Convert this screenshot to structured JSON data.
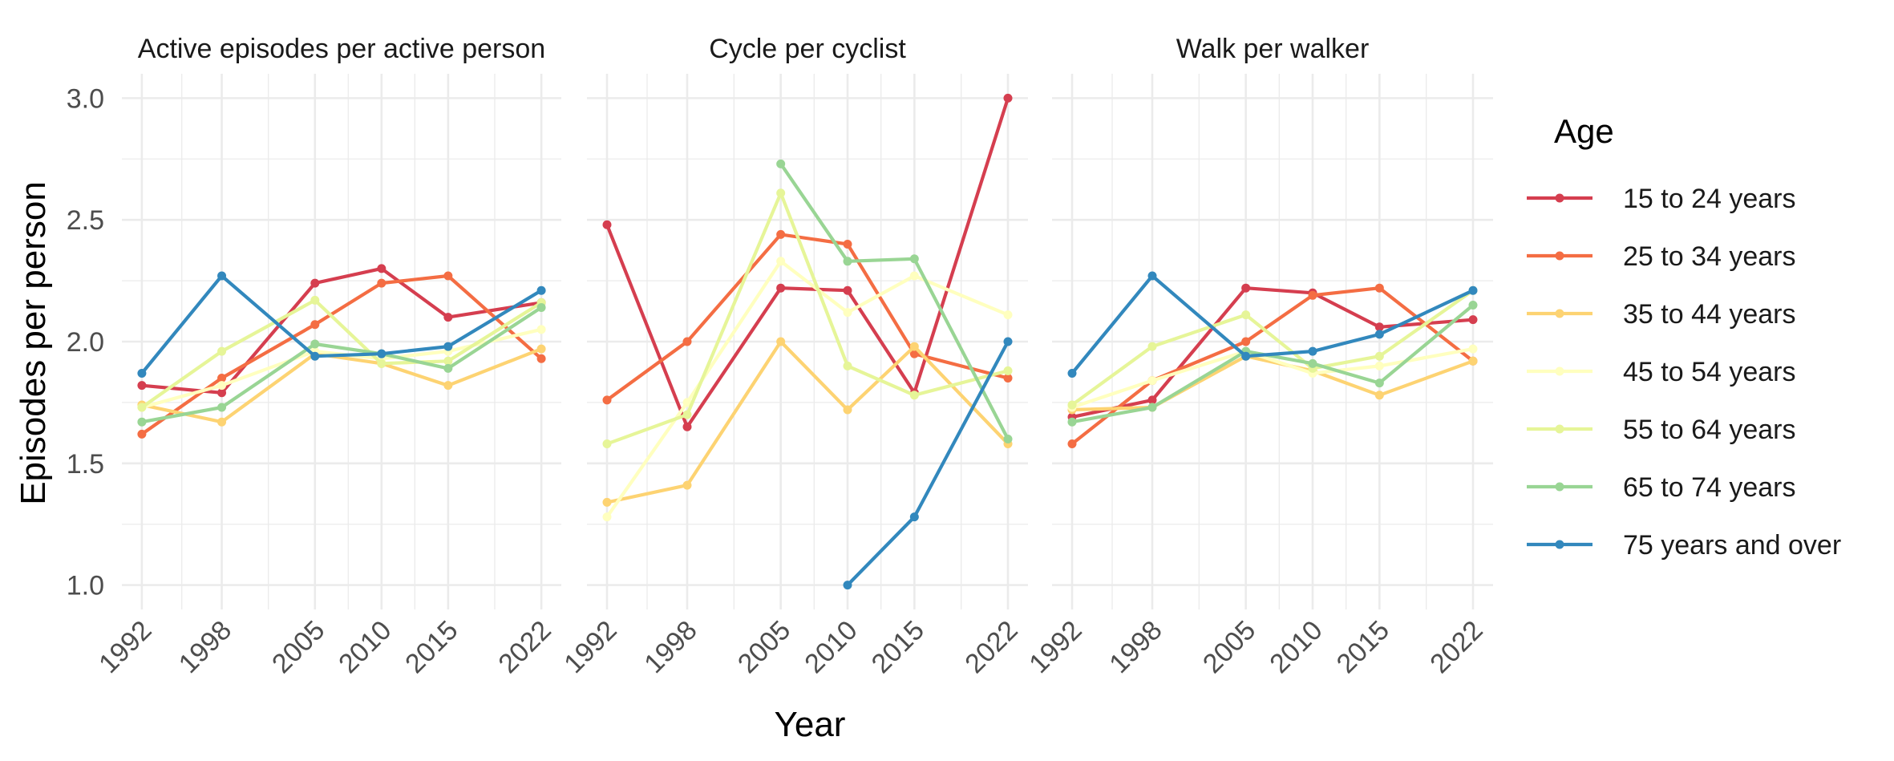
{
  "chart_data": {
    "type": "line",
    "xlabel": "Year",
    "ylabel": "Episodes per person",
    "ylim": [
      0.9,
      3.1
    ],
    "yticks": [
      "1.0",
      "1.5",
      "2.0",
      "2.5",
      "3.0"
    ],
    "x": [
      1992,
      1998,
      2005,
      2010,
      2015,
      2022
    ],
    "xtick_labels": [
      "1992",
      "1998",
      "2005",
      "2010",
      "2015",
      "2022"
    ],
    "grid": true,
    "legend": {
      "title": "Age",
      "placement": "right",
      "entries": [
        {
          "name": "15 to 24 years",
          "color": "#d53e4f"
        },
        {
          "name": "25 to 34 years",
          "color": "#f46d43"
        },
        {
          "name": "35 to 44 years",
          "color": "#fdd372"
        },
        {
          "name": "45 to 54 years",
          "color": "#ffffbf"
        },
        {
          "name": "55 to 64 years",
          "color": "#e6f598"
        },
        {
          "name": "65 to 74 years",
          "color": "#99d594"
        },
        {
          "name": "75 years and over",
          "color": "#3288bd"
        }
      ]
    },
    "panels": [
      {
        "title": "Active episodes per active person",
        "series": [
          {
            "name": "15 to 24 years",
            "values": [
              1.82,
              1.79,
              2.24,
              2.3,
              2.1,
              2.16
            ]
          },
          {
            "name": "25 to 34 years",
            "values": [
              1.62,
              1.85,
              2.07,
              2.24,
              2.27,
              1.93
            ]
          },
          {
            "name": "35 to 44 years",
            "values": [
              1.74,
              1.67,
              1.95,
              1.91,
              1.82,
              1.97
            ]
          },
          {
            "name": "45 to 54 years",
            "values": [
              1.73,
              1.82,
              1.96,
              1.93,
              1.96,
              2.05
            ]
          },
          {
            "name": "55 to 64 years",
            "values": [
              1.73,
              1.96,
              2.17,
              1.91,
              1.92,
              2.16
            ]
          },
          {
            "name": "65 to 74 years",
            "values": [
              1.67,
              1.73,
              1.99,
              1.95,
              1.89,
              2.14
            ]
          },
          {
            "name": "75 years and over",
            "values": [
              1.87,
              2.27,
              1.94,
              1.95,
              1.98,
              2.21
            ]
          }
        ]
      },
      {
        "title": "Cycle per cyclist",
        "series": [
          {
            "name": "15 to 24 years",
            "values": [
              2.48,
              1.65,
              2.22,
              2.21,
              1.79,
              3.0
            ]
          },
          {
            "name": "25 to 34 years",
            "values": [
              1.76,
              2.0,
              2.44,
              2.4,
              1.95,
              1.85
            ]
          },
          {
            "name": "35 to 44 years",
            "values": [
              1.34,
              1.41,
              2.0,
              1.72,
              1.98,
              1.58
            ]
          },
          {
            "name": "45 to 54 years",
            "values": [
              1.28,
              1.75,
              2.33,
              2.12,
              2.27,
              2.11
            ]
          },
          {
            "name": "55 to 64 years",
            "values": [
              1.58,
              1.7,
              2.61,
              1.9,
              1.78,
              1.88
            ]
          },
          {
            "name": "65 to 74 years",
            "values": [
              null,
              null,
              2.73,
              2.33,
              2.34,
              1.6
            ]
          },
          {
            "name": "75 years and over",
            "values": [
              null,
              null,
              null,
              1.0,
              1.28,
              2.0
            ]
          }
        ]
      },
      {
        "title": "Walk per walker",
        "series": [
          {
            "name": "15 to 24 years",
            "values": [
              1.69,
              1.76,
              2.22,
              2.2,
              2.06,
              2.09
            ]
          },
          {
            "name": "25 to 34 years",
            "values": [
              1.58,
              1.84,
              2.0,
              2.19,
              2.22,
              1.92
            ]
          },
          {
            "name": "35 to 44 years",
            "values": [
              1.72,
              1.73,
              1.94,
              1.88,
              1.78,
              1.92
            ]
          },
          {
            "name": "45 to 54 years",
            "values": [
              1.73,
              1.84,
              1.96,
              1.87,
              1.9,
              1.97
            ]
          },
          {
            "name": "55 to 64 years",
            "values": [
              1.74,
              1.98,
              2.11,
              1.89,
              1.94,
              2.21
            ]
          },
          {
            "name": "65 to 74 years",
            "values": [
              1.67,
              1.73,
              1.96,
              1.91,
              1.83,
              2.15
            ]
          },
          {
            "name": "75 years and over",
            "values": [
              1.87,
              2.27,
              1.94,
              1.96,
              2.03,
              2.21
            ]
          }
        ]
      }
    ]
  }
}
